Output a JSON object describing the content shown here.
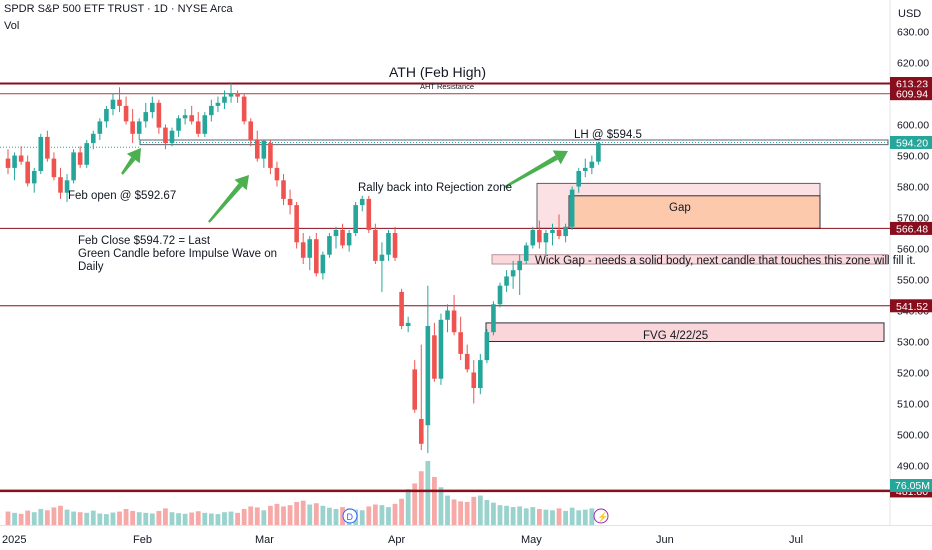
{
  "header": {
    "title": "SPDR S&P 500 ETF TRUST · 1D · NYSE Arca",
    "vol_label": "Vol",
    "currency": "USD"
  },
  "chart_data": {
    "type": "candlestick",
    "y_ticks": [
      630,
      620,
      610,
      600,
      590,
      580,
      570,
      560,
      550,
      540,
      530,
      520,
      510,
      500,
      490
    ],
    "y_tick_labels": [
      "630.00",
      "620.00",
      "610.00",
      "600.00",
      "590.00",
      "580.00",
      "570.00",
      "560.00",
      "550.00",
      "540.00",
      "530.00",
      "520.00",
      "510.00",
      "500.00",
      "490.00"
    ],
    "x_labels": [
      "2025",
      "Feb",
      "Mar",
      "Apr",
      "May",
      "Jun",
      "Jul"
    ],
    "price_tags": [
      {
        "value": 613.23,
        "label": "613.23",
        "color": "#880e1e"
      },
      {
        "value": 609.94,
        "label": "609.94",
        "color": "#880e1e"
      },
      {
        "value": 594.2,
        "label": "594.20",
        "color": "#26a69a"
      },
      {
        "value": 566.48,
        "label": "566.48",
        "color": "#880e1e"
      },
      {
        "value": 541.52,
        "label": "541.52",
        "color": "#880e1e"
      },
      {
        "value": 481.8,
        "label": "481.80",
        "color": "#880e1e"
      }
    ],
    "volume_tag": {
      "label": "76.05M",
      "color": "#26a69a"
    },
    "horizontal_levels": [
      613.23,
      609.94,
      594.2,
      566.48,
      541.52,
      481.8
    ],
    "zones": [
      {
        "name": "rejection-zone",
        "y": [
          595,
          593.5
        ]
      },
      {
        "name": "gap",
        "label": "Gap",
        "y": [
          577,
          566.5
        ]
      },
      {
        "name": "rejection-box",
        "y": [
          581,
          566.5
        ]
      },
      {
        "name": "wick-gap",
        "label": "Wick Gap - needs a solid body, next candle that touches this zone will fill it.",
        "y": [
          558,
          555
        ]
      },
      {
        "name": "fvg",
        "label": "FVG 4/22/25",
        "y": [
          536,
          530
        ]
      }
    ],
    "annotations": {
      "ath": "ATH (Feb High)",
      "aht": "AHT Resistance",
      "lh": "LH @ $594.5",
      "rally": "Rally back into Rejection zone",
      "feb_open": "Feb open @ $592.67",
      "feb_close": "Feb Close $594.72 = Last Green Candle before Impulse Wave on Daily"
    },
    "candles": [
      {
        "o": 589,
        "h": 592,
        "l": 584,
        "c": 586
      },
      {
        "o": 586,
        "h": 591,
        "l": 582,
        "c": 590
      },
      {
        "o": 590,
        "h": 593,
        "l": 587,
        "c": 588
      },
      {
        "o": 588,
        "h": 590,
        "l": 580,
        "c": 581
      },
      {
        "o": 581,
        "h": 586,
        "l": 578,
        "c": 585
      },
      {
        "o": 585,
        "h": 597,
        "l": 584,
        "c": 596
      },
      {
        "o": 596,
        "h": 598,
        "l": 588,
        "c": 589
      },
      {
        "o": 589,
        "h": 591,
        "l": 582,
        "c": 583
      },
      {
        "o": 583,
        "h": 586,
        "l": 576,
        "c": 578
      },
      {
        "o": 578,
        "h": 584,
        "l": 575,
        "c": 582
      },
      {
        "o": 582,
        "h": 592,
        "l": 581,
        "c": 591
      },
      {
        "o": 591,
        "h": 593,
        "l": 586,
        "c": 587
      },
      {
        "o": 587,
        "h": 595,
        "l": 586,
        "c": 594
      },
      {
        "o": 594,
        "h": 598,
        "l": 592,
        "c": 597
      },
      {
        "o": 597,
        "h": 602,
        "l": 595,
        "c": 601
      },
      {
        "o": 601,
        "h": 606,
        "l": 599,
        "c": 605
      },
      {
        "o": 605,
        "h": 610,
        "l": 603,
        "c": 608
      },
      {
        "o": 608,
        "h": 612,
        "l": 604,
        "c": 606
      },
      {
        "o": 606,
        "h": 609,
        "l": 600,
        "c": 601
      },
      {
        "o": 601,
        "h": 605,
        "l": 594,
        "c": 597
      },
      {
        "o": 597,
        "h": 602,
        "l": 595,
        "c": 601
      },
      {
        "o": 601,
        "h": 607,
        "l": 599,
        "c": 604
      },
      {
        "o": 604,
        "h": 609,
        "l": 602,
        "c": 607
      },
      {
        "o": 607,
        "h": 608,
        "l": 597,
        "c": 599
      },
      {
        "o": 599,
        "h": 600,
        "l": 592,
        "c": 594
      },
      {
        "o": 594,
        "h": 599,
        "l": 593,
        "c": 598
      },
      {
        "o": 598,
        "h": 603,
        "l": 596,
        "c": 602
      },
      {
        "o": 602,
        "h": 605,
        "l": 600,
        "c": 603
      },
      {
        "o": 603,
        "h": 606,
        "l": 600,
        "c": 601
      },
      {
        "o": 601,
        "h": 604,
        "l": 596,
        "c": 597
      },
      {
        "o": 597,
        "h": 604,
        "l": 596,
        "c": 603
      },
      {
        "o": 603,
        "h": 608,
        "l": 601,
        "c": 606
      },
      {
        "o": 606,
        "h": 609,
        "l": 604,
        "c": 607
      },
      {
        "o": 607,
        "h": 611,
        "l": 605,
        "c": 609
      },
      {
        "o": 609,
        "h": 613.2,
        "l": 607,
        "c": 610
      },
      {
        "o": 610,
        "h": 611,
        "l": 607,
        "c": 609
      },
      {
        "o": 609,
        "h": 610,
        "l": 600,
        "c": 601
      },
      {
        "o": 601,
        "h": 602,
        "l": 593,
        "c": 595
      },
      {
        "o": 595,
        "h": 598,
        "l": 588,
        "c": 589
      },
      {
        "o": 589,
        "h": 595,
        "l": 586,
        "c": 594.72
      },
      {
        "o": 594,
        "h": 595,
        "l": 584,
        "c": 586
      },
      {
        "o": 586,
        "h": 588,
        "l": 580,
        "c": 582
      },
      {
        "o": 582,
        "h": 584,
        "l": 574,
        "c": 576
      },
      {
        "o": 576,
        "h": 579,
        "l": 571,
        "c": 574
      },
      {
        "o": 574,
        "h": 575,
        "l": 560,
        "c": 562
      },
      {
        "o": 562,
        "h": 565,
        "l": 555,
        "c": 557
      },
      {
        "o": 557,
        "h": 564,
        "l": 553,
        "c": 563
      },
      {
        "o": 563,
        "h": 565,
        "l": 551,
        "c": 552
      },
      {
        "o": 552,
        "h": 559,
        "l": 550,
        "c": 558
      },
      {
        "o": 558,
        "h": 565,
        "l": 557,
        "c": 564
      },
      {
        "o": 564,
        "h": 567,
        "l": 560,
        "c": 566
      },
      {
        "o": 566,
        "h": 568,
        "l": 560,
        "c": 561
      },
      {
        "o": 561,
        "h": 566,
        "l": 559,
        "c": 565
      },
      {
        "o": 565,
        "h": 575,
        "l": 564,
        "c": 574
      },
      {
        "o": 574,
        "h": 577,
        "l": 572,
        "c": 576
      },
      {
        "o": 576,
        "h": 577,
        "l": 565,
        "c": 566
      },
      {
        "o": 566,
        "h": 568,
        "l": 555,
        "c": 556
      },
      {
        "o": 556,
        "h": 562,
        "l": 546,
        "c": 558
      },
      {
        "o": 558,
        "h": 566,
        "l": 556,
        "c": 565
      },
      {
        "o": 565,
        "h": 567,
        "l": 556,
        "c": 557
      },
      {
        "o": 546,
        "h": 547,
        "l": 534,
        "c": 535
      },
      {
        "o": 535,
        "h": 538,
        "l": 533,
        "c": 536
      },
      {
        "o": 521,
        "h": 524,
        "l": 507,
        "c": 508
      },
      {
        "o": 505,
        "h": 529,
        "l": 495,
        "c": 497
      },
      {
        "o": 503,
        "h": 548,
        "l": 494,
        "c": 535
      },
      {
        "o": 532,
        "h": 536,
        "l": 517,
        "c": 518
      },
      {
        "o": 518,
        "h": 539,
        "l": 516,
        "c": 537
      },
      {
        "o": 537,
        "h": 542,
        "l": 533,
        "c": 540
      },
      {
        "o": 540,
        "h": 545,
        "l": 532,
        "c": 533
      },
      {
        "o": 533,
        "h": 538,
        "l": 524,
        "c": 526
      },
      {
        "o": 526,
        "h": 529,
        "l": 520,
        "c": 521
      },
      {
        "o": 520,
        "h": 524,
        "l": 510,
        "c": 515
      },
      {
        "o": 515,
        "h": 526,
        "l": 513,
        "c": 524
      },
      {
        "o": 524,
        "h": 534,
        "l": 523,
        "c": 533
      },
      {
        "o": 533,
        "h": 543,
        "l": 532,
        "c": 542
      },
      {
        "o": 542,
        "h": 549,
        "l": 541,
        "c": 548
      },
      {
        "o": 548,
        "h": 553,
        "l": 546,
        "c": 551
      },
      {
        "o": 551,
        "h": 556,
        "l": 547,
        "c": 553
      },
      {
        "o": 553,
        "h": 558,
        "l": 545,
        "c": 556
      },
      {
        "o": 556,
        "h": 562,
        "l": 555,
        "c": 561
      },
      {
        "o": 561,
        "h": 567,
        "l": 560,
        "c": 566
      },
      {
        "o": 566,
        "h": 569,
        "l": 560,
        "c": 562
      },
      {
        "o": 562,
        "h": 566,
        "l": 558,
        "c": 565
      },
      {
        "o": 565,
        "h": 568,
        "l": 561,
        "c": 566
      },
      {
        "o": 566,
        "h": 571,
        "l": 563,
        "c": 564
      },
      {
        "o": 564,
        "h": 568,
        "l": 562,
        "c": 567
      },
      {
        "o": 567,
        "h": 580,
        "l": 566,
        "c": 579
      },
      {
        "o": 580,
        "h": 586,
        "l": 578,
        "c": 585
      },
      {
        "o": 585,
        "h": 589,
        "l": 583,
        "c": 586
      },
      {
        "o": 586,
        "h": 590,
        "l": 584,
        "c": 588
      },
      {
        "o": 588,
        "h": 594.5,
        "l": 587,
        "c": 594
      }
    ],
    "volume": [
      0.42,
      0.38,
      0.35,
      0.45,
      0.4,
      0.5,
      0.46,
      0.55,
      0.6,
      0.48,
      0.42,
      0.4,
      0.38,
      0.45,
      0.36,
      0.34,
      0.39,
      0.42,
      0.5,
      0.44,
      0.4,
      0.38,
      0.36,
      0.44,
      0.52,
      0.4,
      0.37,
      0.35,
      0.39,
      0.43,
      0.38,
      0.36,
      0.34,
      0.4,
      0.42,
      0.38,
      0.5,
      0.58,
      0.55,
      0.46,
      0.6,
      0.66,
      0.58,
      0.62,
      0.72,
      0.76,
      0.64,
      0.68,
      0.6,
      0.54,
      0.5,
      0.56,
      0.52,
      0.48,
      0.46,
      0.58,
      0.64,
      0.62,
      0.56,
      0.66,
      0.82,
      1.12,
      1.3,
      1.68,
      2.0,
      1.5,
      1.18,
      0.92,
      0.8,
      0.74,
      0.72,
      0.88,
      0.92,
      0.78,
      0.7,
      0.62,
      0.6,
      0.56,
      0.58,
      0.52,
      0.56,
      0.5,
      0.48,
      0.46,
      0.52,
      0.44,
      0.54,
      0.46,
      0.48,
      0.52
    ],
    "events": [
      {
        "label": "D"
      },
      {
        "label": "⚡"
      }
    ]
  }
}
